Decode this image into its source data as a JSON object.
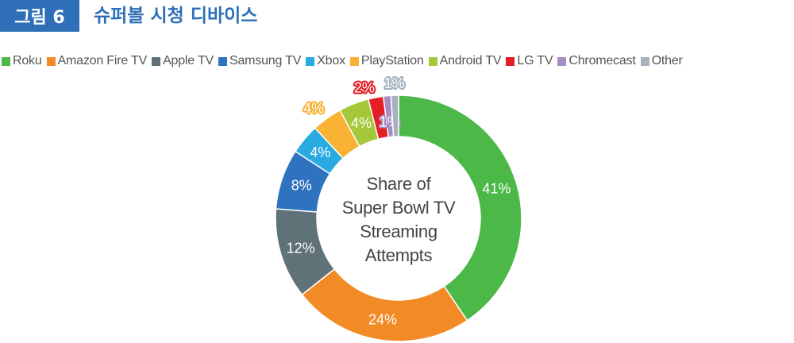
{
  "header": {
    "figure_label": "그림 6",
    "title": "슈퍼볼 시청 디바이스"
  },
  "chart_data": {
    "type": "pie",
    "center_label": [
      "Share of",
      "Super Bowl TV",
      "Streaming",
      "Attempts"
    ],
    "categories": [
      "Roku",
      "Amazon Fire TV",
      "Apple TV",
      "Samsung TV",
      "Xbox",
      "PlayStation",
      "Android TV",
      "LG TV",
      "Chromecast",
      "Other"
    ],
    "values": [
      41,
      24,
      12,
      8,
      4,
      4,
      4,
      2,
      1,
      1
    ],
    "labels": [
      "41%",
      "24%",
      "12%",
      "8%",
      "4%",
      "4%",
      "4%",
      "2%",
      "1%",
      "1%"
    ],
    "colors": [
      "#4cb848",
      "#f28a25",
      "#5f7278",
      "#2f73c0",
      "#29aae1",
      "#f9b233",
      "#a5c83a",
      "#e31e25",
      "#a98bc3",
      "#a6b2bd"
    ],
    "legend_position": "top-left"
  }
}
